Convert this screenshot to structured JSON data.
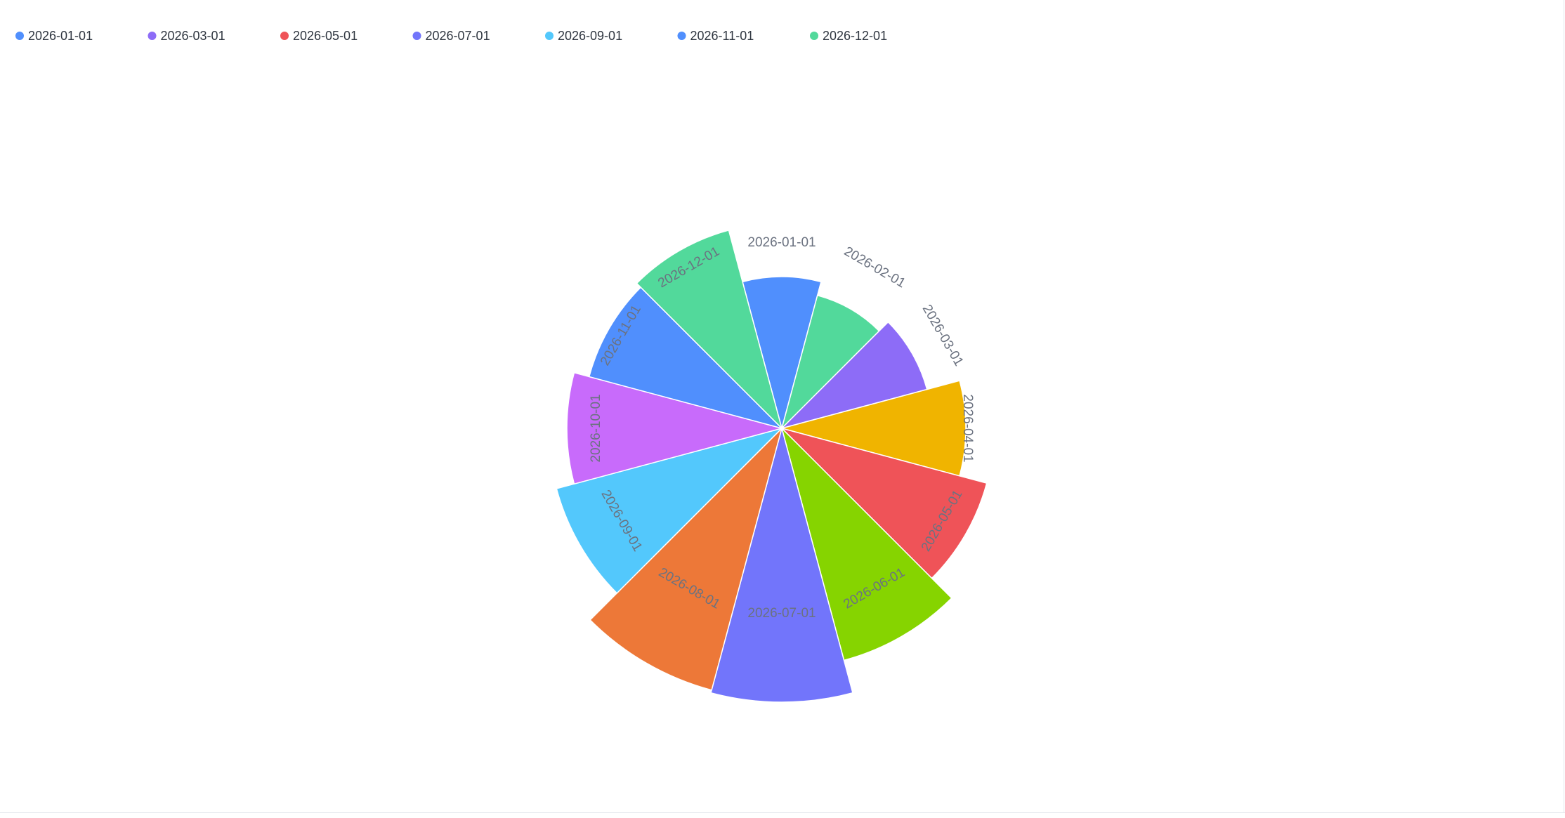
{
  "chart_data": {
    "type": "rose",
    "categories": [
      "2026-01-01",
      "2026-02-01",
      "2026-03-01",
      "2026-04-01",
      "2026-05-01",
      "2026-06-01",
      "2026-07-01",
      "2026-08-01",
      "2026-09-01",
      "2026-10-01",
      "2026-11-01",
      "2026-12-01"
    ],
    "values": [
      216,
      196,
      214,
      262,
      302,
      342,
      390,
      386,
      332,
      306,
      284,
      292
    ],
    "colors": [
      "#508ffd",
      "#52d99b",
      "#8d6cf7",
      "#f0b400",
      "#ef5358",
      "#86d400",
      "#7275fb",
      "#ed7838",
      "#53c8fc",
      "#c86bfb",
      "#508ffd",
      "#52d99b"
    ],
    "legend": [
      {
        "label": "2026-01-01",
        "color": "#508ffd"
      },
      {
        "label": "2026-03-01",
        "color": "#8d6cf7"
      },
      {
        "label": "2026-05-01",
        "color": "#ef5358"
      },
      {
        "label": "2026-07-01",
        "color": "#7275fb"
      },
      {
        "label": "2026-09-01",
        "color": "#53c8fc"
      },
      {
        "label": "2026-11-01",
        "color": "#508ffd"
      },
      {
        "label": "2026-12-01",
        "color": "#52d99b"
      }
    ],
    "legend_position": "top-left",
    "title": "",
    "grid": false
  }
}
